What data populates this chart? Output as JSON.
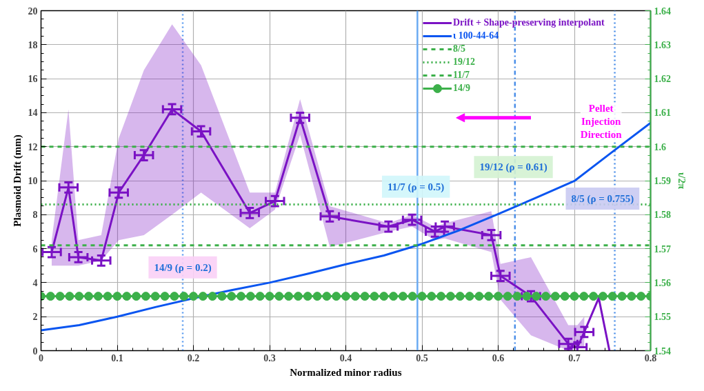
{
  "chart_data": {
    "type": "line",
    "xlabel": "Normalized minor radius",
    "ylabel": "Plasmoid Drift (mm)",
    "y2label": "ι/2π",
    "xlim": [
      0,
      0.8
    ],
    "ylim": [
      0,
      20
    ],
    "y2lim": [
      1.54,
      1.64
    ],
    "xticks": [
      0,
      0.1,
      0.2,
      0.3,
      0.4,
      0.5,
      0.6,
      0.7,
      0.8
    ],
    "yticks": [
      0,
      2,
      4,
      6,
      8,
      10,
      12,
      14,
      16,
      18,
      20
    ],
    "y2ticks": [
      1.54,
      1.55,
      1.56,
      1.57,
      1.58,
      1.59,
      1.6,
      1.61,
      1.62,
      1.63,
      1.64
    ],
    "grid": true,
    "legend": "top right",
    "series": [
      {
        "name": "Drift + Shape-preserving interpolant",
        "color": "#7a12c4",
        "x": [
          0.014,
          0.036,
          0.049,
          0.079,
          0.102,
          0.135,
          0.172,
          0.21,
          0.274,
          0.307,
          0.34,
          0.379,
          0.456,
          0.487,
          0.517,
          0.53,
          0.591,
          0.603,
          0.643,
          0.692,
          0.704,
          0.713,
          0.732,
          0.746
        ],
        "values": [
          5.8,
          9.6,
          5.5,
          5.3,
          9.3,
          11.5,
          14.2,
          12.9,
          8.1,
          8.8,
          13.7,
          7.9,
          7.3,
          7.7,
          7.0,
          7.3,
          6.8,
          4.4,
          3.2,
          0.4,
          0.2,
          1.1,
          3.1,
          0
        ],
        "errors": [
          0.3,
          0.3,
          0.3,
          0.3,
          0.3,
          0.3,
          0.3,
          0.3,
          0.3,
          0.3,
          0.3,
          0.3,
          0.3,
          0.3,
          0.3,
          0.3,
          0.3,
          0.3,
          0.3,
          0.3,
          0.3,
          0.3,
          null,
          null
        ],
        "xerrors": [
          0.012,
          0.012,
          0.012,
          0.012,
          0.012,
          0.012,
          0.012,
          0.012,
          0.012,
          0.012,
          0.012,
          0.012,
          0.012,
          0.012,
          0.012,
          0.012,
          0.012,
          0.012,
          0.012,
          0.012,
          0.012,
          0.012,
          null,
          null
        ],
        "lower": [
          5.0,
          5.0,
          5.0,
          5.3,
          6.5,
          6.8,
          8.0,
          9.3,
          7.2,
          8.3,
          12.7,
          6.1,
          7.0,
          7.3,
          6.5,
          6.6,
          5.8,
          3.0,
          0.9,
          0,
          0.1,
          0.2,
          null,
          null
        ],
        "upper": [
          6.5,
          14.2,
          6.5,
          6.8,
          12.5,
          16.5,
          19.2,
          16.8,
          9.3,
          9.3,
          14.8,
          8.5,
          7.5,
          8.0,
          7.3,
          7.5,
          8.2,
          5.1,
          5.5,
          1.5,
          1.5,
          2.0,
          null,
          null
        ],
        "line_style": "solid"
      },
      {
        "name": "ι 100-44-64",
        "color": "#0a55f0",
        "axis": "y2",
        "x": [
          0,
          0.05,
          0.1,
          0.15,
          0.2,
          0.25,
          0.3,
          0.35,
          0.4,
          0.45,
          0.5,
          0.55,
          0.6,
          0.65,
          0.7,
          0.75,
          0.8
        ],
        "values": [
          1.546,
          1.5475,
          1.55,
          1.5528,
          1.5554,
          1.5578,
          1.56,
          1.5626,
          1.5654,
          1.568,
          1.5714,
          1.5755,
          1.5802,
          1.585,
          1.5899,
          1.5985,
          1.607
        ],
        "line_style": "solid"
      },
      {
        "name": "8/5",
        "color": "#3cb04a",
        "axis": "y2",
        "x": [
          0,
          0.8
        ],
        "values": [
          1.6,
          1.6
        ],
        "line_style": "dashed"
      },
      {
        "name": "19/12",
        "color": "#3cb04a",
        "axis": "y2",
        "x": [
          0,
          0.8
        ],
        "values": [
          1.583,
          1.583
        ],
        "line_style": "dotted"
      },
      {
        "name": "11/7",
        "color": "#3cb04a",
        "axis": "y2",
        "x": [
          0,
          0.8
        ],
        "values": [
          1.571,
          1.571
        ],
        "line_style": "dashed"
      },
      {
        "name": "14/9",
        "color": "#3cb04a",
        "axis": "y2",
        "marker": "circle",
        "line_style": "solid",
        "x": [
          0,
          0.0125,
          0.025,
          0.0375,
          0.05,
          0.0625,
          0.075,
          0.0875,
          0.1,
          0.1125,
          0.125,
          0.1375,
          0.15,
          0.1625,
          0.175,
          0.1875,
          0.2,
          0.2125,
          0.225,
          0.2375,
          0.25,
          0.2625,
          0.275,
          0.2875,
          0.3,
          0.3125,
          0.325,
          0.3375,
          0.35,
          0.3625,
          0.375,
          0.3875,
          0.4,
          0.4125,
          0.425,
          0.4375,
          0.45,
          0.4625,
          0.475,
          0.4875,
          0.5,
          0.5125,
          0.525,
          0.5375,
          0.55,
          0.5625,
          0.575,
          0.5875,
          0.6,
          0.6125,
          0.625,
          0.6375,
          0.65,
          0.6625,
          0.675,
          0.6875,
          0.7,
          0.7125,
          0.725,
          0.7375,
          0.75,
          0.7625,
          0.775,
          0.7875,
          0.8
        ],
        "values": [
          1.556,
          1.556,
          1.556,
          1.556,
          1.556,
          1.556,
          1.556,
          1.556,
          1.556,
          1.556,
          1.556,
          1.556,
          1.556,
          1.556,
          1.556,
          1.556,
          1.556,
          1.556,
          1.556,
          1.556,
          1.556,
          1.556,
          1.556,
          1.556,
          1.556,
          1.556,
          1.556,
          1.556,
          1.556,
          1.556,
          1.556,
          1.556,
          1.556,
          1.556,
          1.556,
          1.556,
          1.556,
          1.556,
          1.556,
          1.556,
          1.556,
          1.556,
          1.556,
          1.556,
          1.556,
          1.556,
          1.556,
          1.556,
          1.556,
          1.556,
          1.556,
          1.556,
          1.556,
          1.556,
          1.556,
          1.556,
          1.556,
          1.556,
          1.556,
          1.556,
          1.556,
          1.556,
          1.556,
          1.556,
          1.556
        ]
      }
    ],
    "ref_lines": [
      {
        "axis": "x",
        "value": 0.186,
        "color": "#5a9cf0",
        "line_style": "dotted"
      },
      {
        "axis": "x",
        "value": 0.494,
        "color": "#6aaaf2",
        "line_style": "solid"
      },
      {
        "axis": "x",
        "value": 0.622,
        "color": "#4a8ee8",
        "line_style": "dashdot"
      },
      {
        "axis": "x",
        "value": 0.753,
        "color": "#4a8ee8",
        "line_style": "dotted"
      }
    ],
    "annotations": [
      "14/9 (ρ = 0.2)",
      "11/7 (ρ = 0.5)",
      "19/12 (ρ = 0.61)",
      "8/5 (ρ = 0.755)",
      "Pellet Injection Direction"
    ]
  }
}
